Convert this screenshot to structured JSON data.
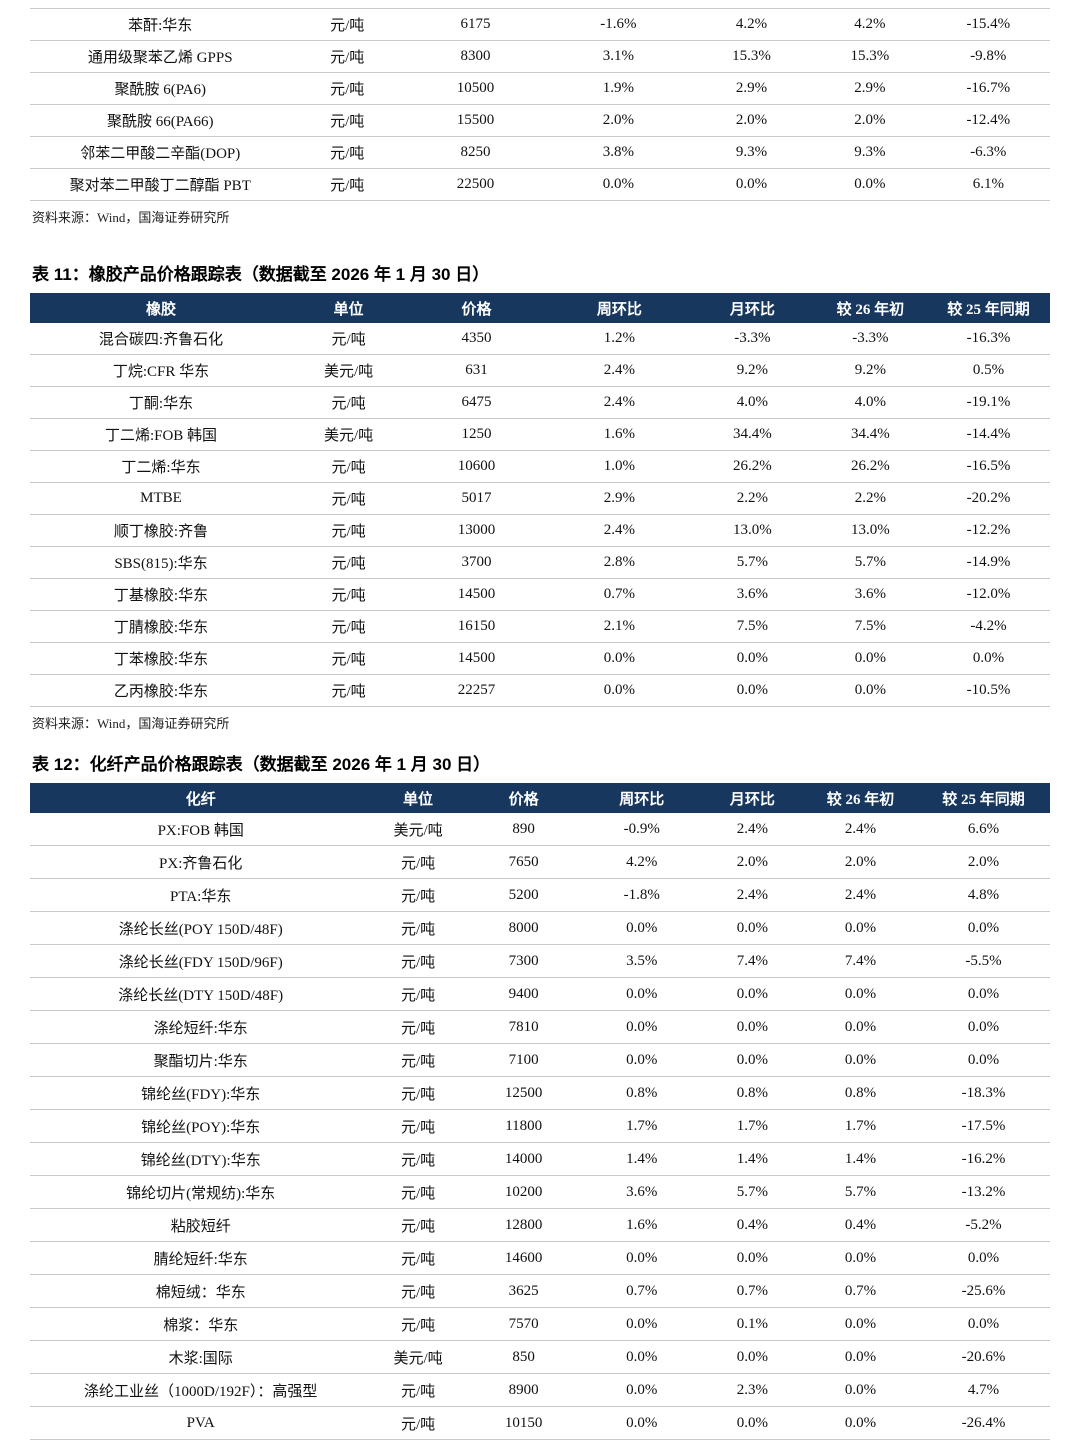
{
  "colors": {
    "header_bg": "#17375E",
    "header_text": "#FFFFFF",
    "row_line": "#C9C9C9"
  },
  "tables": [
    {
      "name": "chemicals-table-continued",
      "columns": null,
      "rows": [
        [
          "苯酐:华东",
          "元/吨",
          "6175",
          "-1.6%",
          "4.2%",
          "4.2%",
          "-15.4%"
        ],
        [
          "通用级聚苯乙烯 GPPS",
          "元/吨",
          "8300",
          "3.1%",
          "15.3%",
          "15.3%",
          "-9.8%"
        ],
        [
          "聚酰胺 6(PA6)",
          "元/吨",
          "10500",
          "1.9%",
          "2.9%",
          "2.9%",
          "-16.7%"
        ],
        [
          "聚酰胺 66(PA66)",
          "元/吨",
          "15500",
          "2.0%",
          "2.0%",
          "2.0%",
          "-12.4%"
        ],
        [
          "邻苯二甲酸二辛酯(DOP)",
          "元/吨",
          "8250",
          "3.8%",
          "9.3%",
          "9.3%",
          "-6.3%"
        ],
        [
          "聚对苯二甲酸丁二醇酯 PBT",
          "元/吨",
          "22500",
          "0.0%",
          "0.0%",
          "0.0%",
          "6.1%"
        ]
      ],
      "source": "资料来源：Wind，国海证券研究所"
    },
    {
      "name": "rubber-price-table",
      "title": "表 11：橡胶产品价格跟踪表（数据截至 2026 年 1 月 30 日）",
      "columns": [
        "橡胶",
        "单位",
        "价格",
        "周环比",
        "月环比",
        "较 26 年初",
        "较 25 年同期"
      ],
      "rows": [
        [
          "混合碳四:齐鲁石化",
          "元/吨",
          "4350",
          "1.2%",
          "-3.3%",
          "-3.3%",
          "-16.3%"
        ],
        [
          "丁烷:CFR 华东",
          "美元/吨",
          "631",
          "2.4%",
          "9.2%",
          "9.2%",
          "0.5%"
        ],
        [
          "丁酮:华东",
          "元/吨",
          "6475",
          "2.4%",
          "4.0%",
          "4.0%",
          "-19.1%"
        ],
        [
          "丁二烯:FOB 韩国",
          "美元/吨",
          "1250",
          "1.6%",
          "34.4%",
          "34.4%",
          "-14.4%"
        ],
        [
          "丁二烯:华东",
          "元/吨",
          "10600",
          "1.0%",
          "26.2%",
          "26.2%",
          "-16.5%"
        ],
        [
          "MTBE",
          "元/吨",
          "5017",
          "2.9%",
          "2.2%",
          "2.2%",
          "-20.2%"
        ],
        [
          "顺丁橡胶:齐鲁",
          "元/吨",
          "13000",
          "2.4%",
          "13.0%",
          "13.0%",
          "-12.2%"
        ],
        [
          "SBS(815):华东",
          "元/吨",
          "3700",
          "2.8%",
          "5.7%",
          "5.7%",
          "-14.9%"
        ],
        [
          "丁基橡胶:华东",
          "元/吨",
          "14500",
          "0.7%",
          "3.6%",
          "3.6%",
          "-12.0%"
        ],
        [
          "丁腈橡胶:华东",
          "元/吨",
          "16150",
          "2.1%",
          "7.5%",
          "7.5%",
          "-4.2%"
        ],
        [
          "丁苯橡胶:华东",
          "元/吨",
          "14500",
          "0.0%",
          "0.0%",
          "0.0%",
          "0.0%"
        ],
        [
          "乙丙橡胶:华东",
          "元/吨",
          "22257",
          "0.0%",
          "0.0%",
          "0.0%",
          "-10.5%"
        ]
      ],
      "source": "资料来源：Wind，国海证券研究所"
    },
    {
      "name": "chemical-fiber-price-table",
      "title": "表 12：化纤产品价格跟踪表（数据截至 2026 年 1 月 30 日）",
      "columns": [
        "化纤",
        "单位",
        "价格",
        "周环比",
        "月环比",
        "较 26 年初",
        "较 25 年同期"
      ],
      "rows": [
        [
          "PX:FOB 韩国",
          "美元/吨",
          "890",
          "-0.9%",
          "2.4%",
          "2.4%",
          "6.6%"
        ],
        [
          "PX:齐鲁石化",
          "元/吨",
          "7650",
          "4.2%",
          "2.0%",
          "2.0%",
          "2.0%"
        ],
        [
          "PTA:华东",
          "元/吨",
          "5200",
          "-1.8%",
          "2.4%",
          "2.4%",
          "4.8%"
        ],
        [
          "涤纶长丝(POY 150D/48F)",
          "元/吨",
          "8000",
          "0.0%",
          "0.0%",
          "0.0%",
          "0.0%"
        ],
        [
          "涤纶长丝(FDY 150D/96F)",
          "元/吨",
          "7300",
          "3.5%",
          "7.4%",
          "7.4%",
          "-5.5%"
        ],
        [
          "涤纶长丝(DTY 150D/48F)",
          "元/吨",
          "9400",
          "0.0%",
          "0.0%",
          "0.0%",
          "0.0%"
        ],
        [
          "涤纶短纤:华东",
          "元/吨",
          "7810",
          "0.0%",
          "0.0%",
          "0.0%",
          "0.0%"
        ],
        [
          "聚酯切片:华东",
          "元/吨",
          "7100",
          "0.0%",
          "0.0%",
          "0.0%",
          "0.0%"
        ],
        [
          "锦纶丝(FDY):华东",
          "元/吨",
          "12500",
          "0.8%",
          "0.8%",
          "0.8%",
          "-18.3%"
        ],
        [
          "锦纶丝(POY):华东",
          "元/吨",
          "11800",
          "1.7%",
          "1.7%",
          "1.7%",
          "-17.5%"
        ],
        [
          "锦纶丝(DTY):华东",
          "元/吨",
          "14000",
          "1.4%",
          "1.4%",
          "1.4%",
          "-16.2%"
        ],
        [
          "锦纶切片(常规纺):华东",
          "元/吨",
          "10200",
          "3.6%",
          "5.7%",
          "5.7%",
          "-13.2%"
        ],
        [
          "粘胶短纤",
          "元/吨",
          "12800",
          "1.6%",
          "0.4%",
          "0.4%",
          "-5.2%"
        ],
        [
          "腈纶短纤:华东",
          "元/吨",
          "14600",
          "0.0%",
          "0.0%",
          "0.0%",
          "0.0%"
        ],
        [
          "棉短绒：华东",
          "元/吨",
          "3625",
          "0.7%",
          "0.7%",
          "0.7%",
          "-25.6%"
        ],
        [
          "棉浆：华东",
          "元/吨",
          "7570",
          "0.0%",
          "0.1%",
          "0.0%",
          "0.0%"
        ],
        [
          "木浆:国际",
          "美元/吨",
          "850",
          "0.0%",
          "0.0%",
          "0.0%",
          "-20.6%"
        ],
        [
          "涤纶工业丝（1000D/192F）：高强型",
          "元/吨",
          "8900",
          "0.0%",
          "2.3%",
          "0.0%",
          "4.7%"
        ],
        [
          "PVA",
          "元/吨",
          "10150",
          "0.0%",
          "0.0%",
          "0.0%",
          "-26.4%"
        ]
      ],
      "source": null
    }
  ]
}
